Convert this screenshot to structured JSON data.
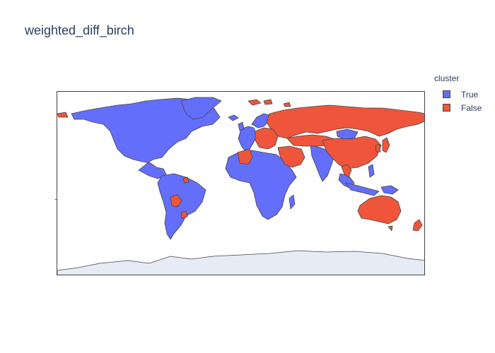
{
  "title": "weighted_diff_birch",
  "legend": {
    "title": "cluster",
    "items": [
      {
        "label": "True",
        "color": "#636efa"
      },
      {
        "label": "False",
        "color": "#ef553b"
      }
    ]
  },
  "colors": {
    "cluster_true": "#636efa",
    "cluster_false": "#ef553b",
    "antarctica": "#e5ecf6",
    "border": "#444444"
  }
}
